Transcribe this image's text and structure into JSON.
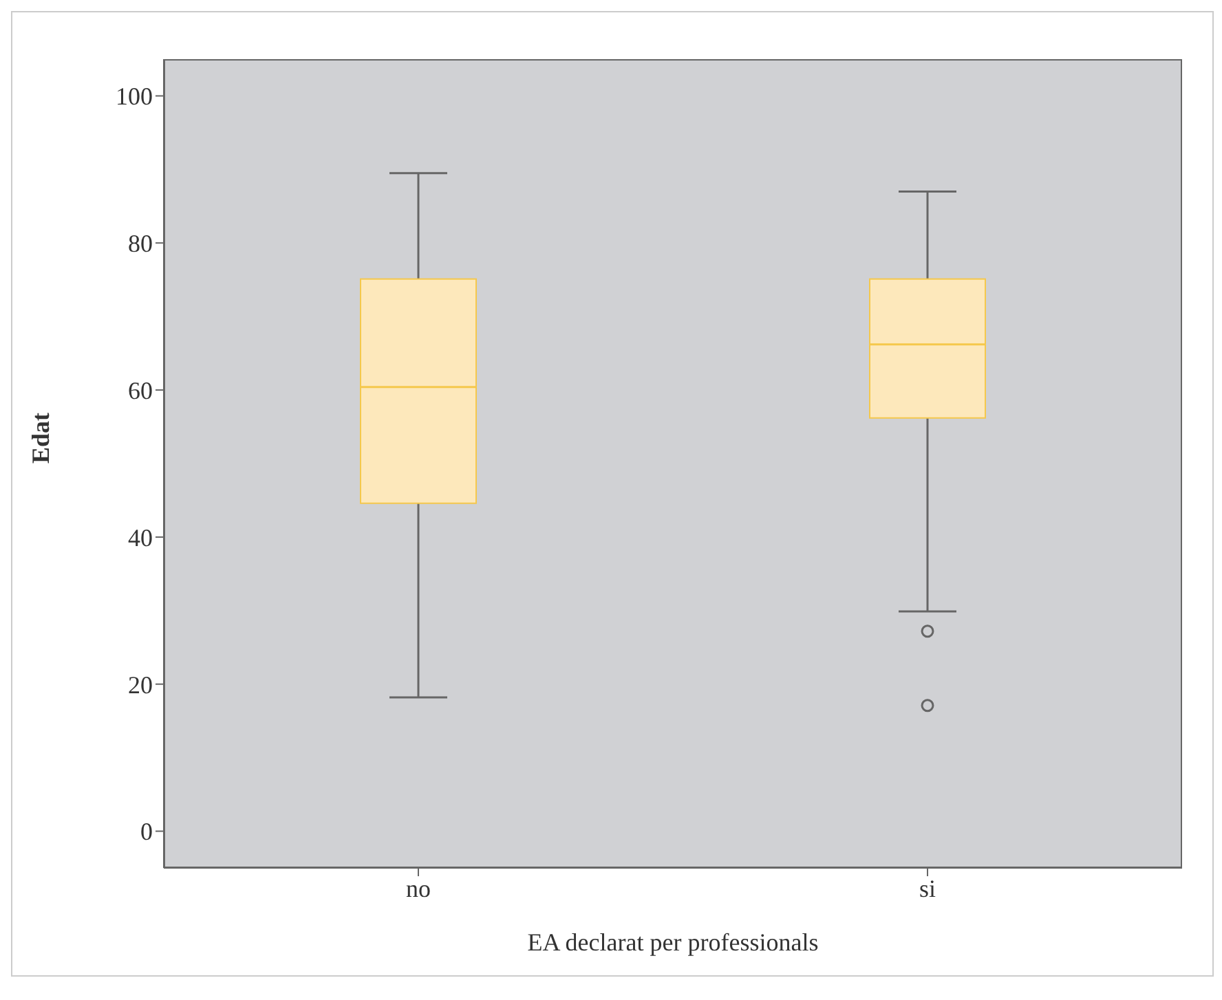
{
  "chart_data": {
    "type": "box",
    "xlabel": "EA declarat per professionals",
    "ylabel": "Edat",
    "categories": [
      "no",
      "si"
    ],
    "boxes": [
      {
        "low": 18.2,
        "q1": 44.6,
        "median": 60.4,
        "q3": 75.1,
        "high": 89.5
      },
      {
        "low": 29.9,
        "q1": 56.2,
        "median": 66.2,
        "q3": 75.1,
        "high": 87.0,
        "outliers": [
          27.2,
          17.1
        ]
      }
    ],
    "color": "#fde8bb",
    "ylim": [
      -5,
      105
    ],
    "yticks": [
      0,
      20,
      40,
      60,
      80,
      100
    ],
    "grid": false,
    "legend": false,
    "marker": "circle"
  }
}
